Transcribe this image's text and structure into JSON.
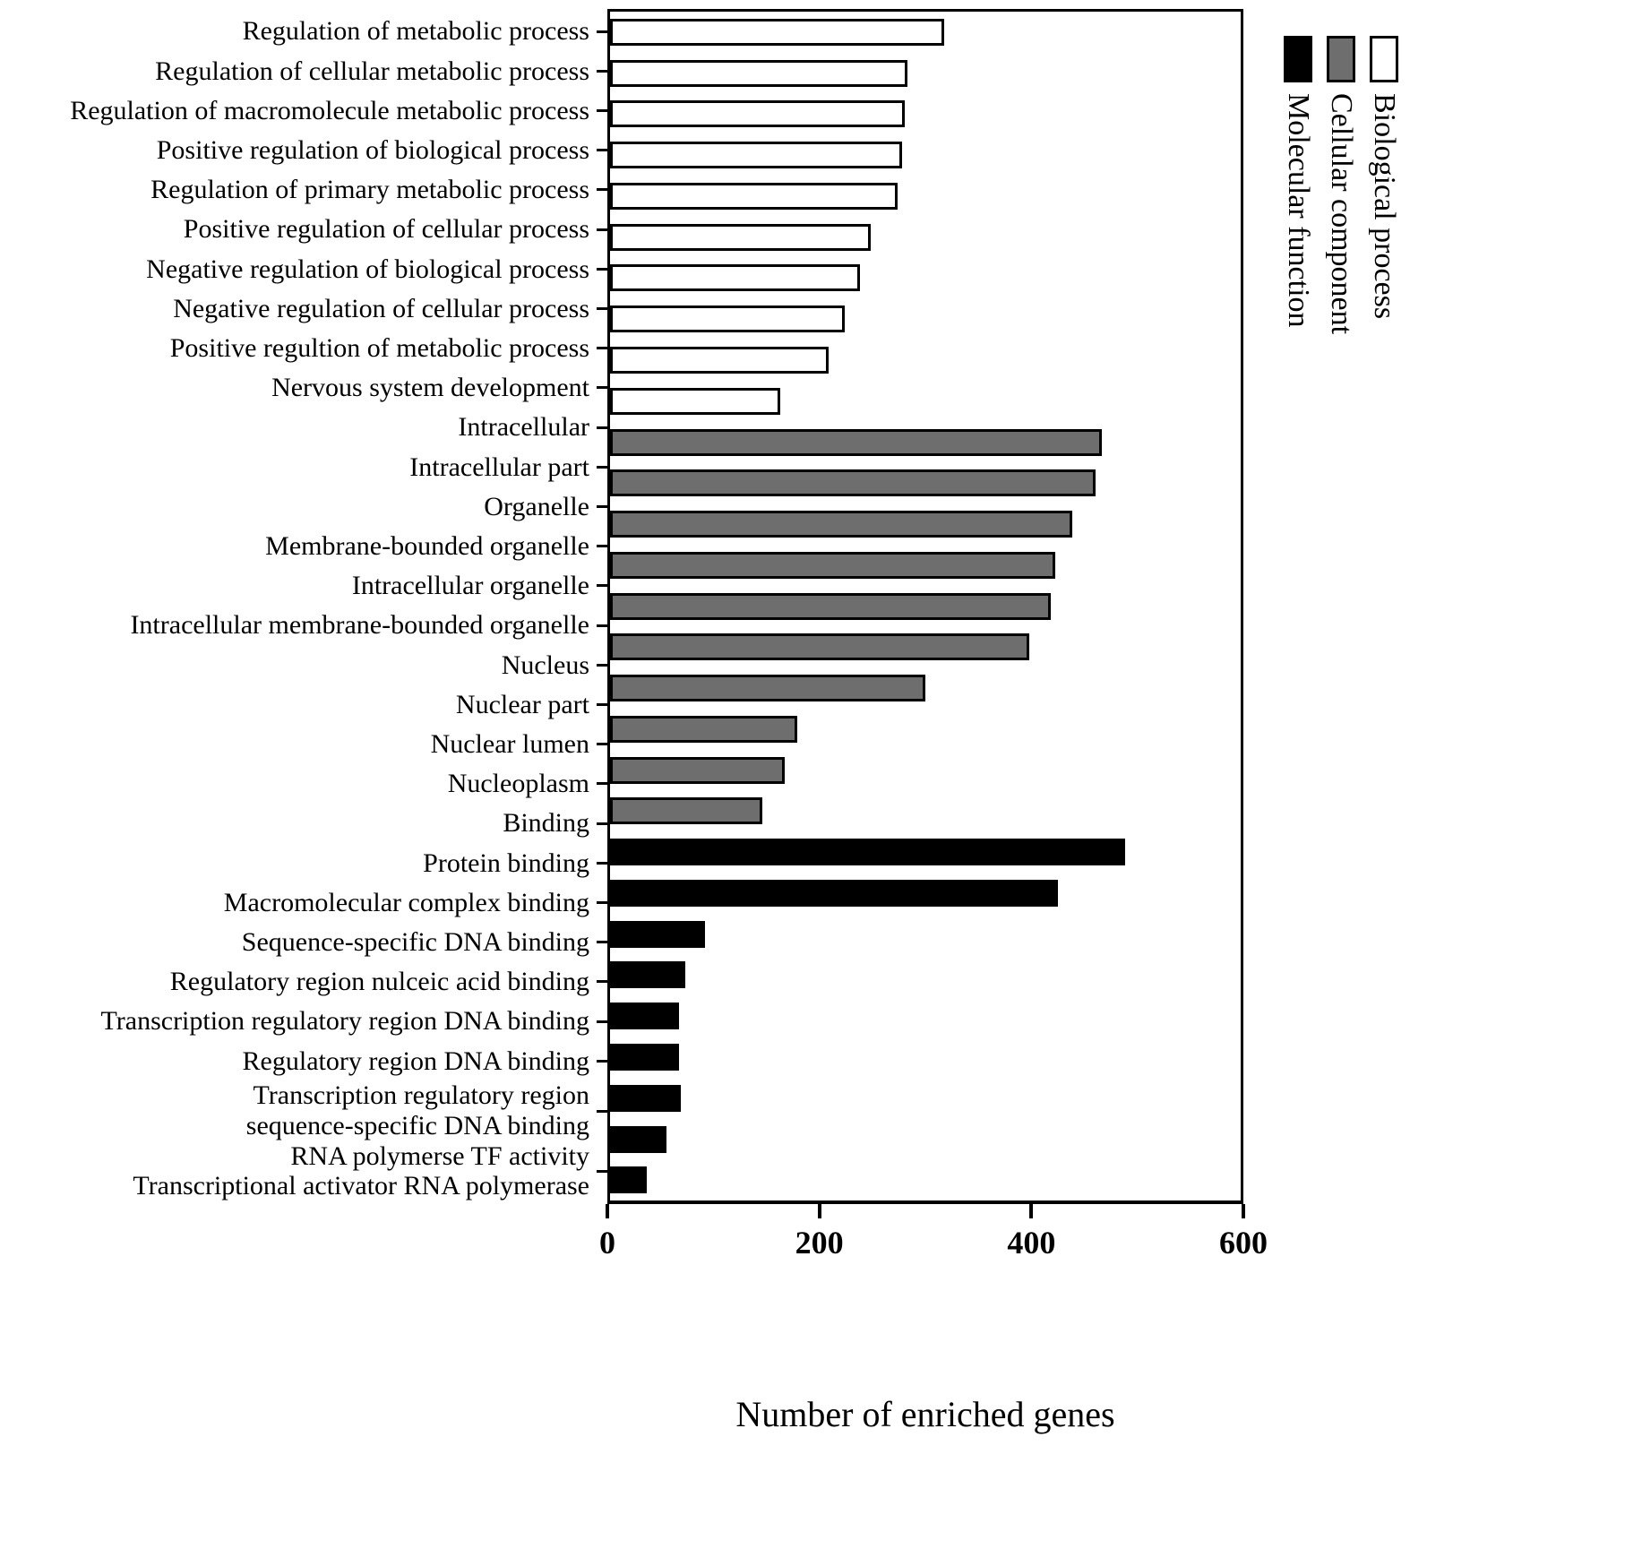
{
  "chart_data": {
    "type": "bar",
    "orientation": "horizontal",
    "title": "",
    "xlabel": "Number of enriched genes",
    "ylabel": "",
    "xlim": [
      0,
      600
    ],
    "x_ticks": [
      "0",
      "200",
      "400",
      "600"
    ],
    "grid": false,
    "legend_position": "top-right",
    "groups": [
      {
        "name": "Biological process",
        "fill": "#ffffff"
      },
      {
        "name": "Cellular component",
        "fill": "#6e6e6e"
      },
      {
        "name": "Molecular function",
        "fill": "#000000"
      }
    ],
    "legend_order": [
      "Molecular function",
      "Cellular component",
      "Biological process"
    ],
    "bars": [
      {
        "label": "Regulation of metabolic process",
        "value": 318,
        "group": "Biological process"
      },
      {
        "label": "Regulation of cellular metabolic process",
        "value": 283,
        "group": "Biological process"
      },
      {
        "label": "Regulation of macromolecule metabolic process",
        "value": 280,
        "group": "Biological process"
      },
      {
        "label": "Positive regulation of biological process",
        "value": 278,
        "group": "Biological process"
      },
      {
        "label": "Regulation of primary metabolic process",
        "value": 274,
        "group": "Biological process"
      },
      {
        "label": "Positive regulation of cellular process",
        "value": 248,
        "group": "Biological process"
      },
      {
        "label": "Negative regulation of biological process",
        "value": 238,
        "group": "Biological process"
      },
      {
        "label": "Negative regulation of cellular process",
        "value": 223,
        "group": "Biological process"
      },
      {
        "label": "Positive regultion of metabolic process",
        "value": 208,
        "group": "Biological process"
      },
      {
        "label": "Nervous system development",
        "value": 162,
        "group": "Biological process"
      },
      {
        "label": "Intracellular",
        "value": 468,
        "group": "Cellular component"
      },
      {
        "label": "Intracellular part",
        "value": 462,
        "group": "Cellular component"
      },
      {
        "label": "Organelle",
        "value": 440,
        "group": "Cellular component"
      },
      {
        "label": "Membrane-bounded organelle",
        "value": 424,
        "group": "Cellular component"
      },
      {
        "label": "Intracellular organelle",
        "value": 419,
        "group": "Cellular component"
      },
      {
        "label": "Intracellular membrane-bounded organelle",
        "value": 399,
        "group": "Cellular component"
      },
      {
        "label": "Nucleus",
        "value": 300,
        "group": "Cellular component"
      },
      {
        "label": "Nuclear part",
        "value": 178,
        "group": "Cellular component"
      },
      {
        "label": "Nuclear lumen",
        "value": 166,
        "group": "Cellular component"
      },
      {
        "label": "Nucleoplasm",
        "value": 145,
        "group": "Cellular component"
      },
      {
        "label": "Binding",
        "value": 490,
        "group": "Molecular function"
      },
      {
        "label": "Protein binding",
        "value": 426,
        "group": "Molecular function"
      },
      {
        "label": "Macromolecular complex binding",
        "value": 90,
        "group": "Molecular function"
      },
      {
        "label": "Sequence-specific DNA binding",
        "value": 72,
        "group": "Molecular function"
      },
      {
        "label": "Regulatory region nulceic acid binding",
        "value": 66,
        "group": "Molecular function"
      },
      {
        "label": "Transcription regulatory region DNA binding",
        "value": 66,
        "group": "Molecular function"
      },
      {
        "label": "Regulatory region DNA binding",
        "value": 67,
        "group": "Molecular function"
      },
      {
        "label": "Transcription regulatory region",
        "label2": "sequence-specific DNA binding",
        "value": 54,
        "group": "Molecular function"
      },
      {
        "label": "RNA polymerse TF  activity",
        "label2": "Transcriptional activator RNA polymerase",
        "value": 35,
        "group": "Molecular function"
      }
    ]
  }
}
